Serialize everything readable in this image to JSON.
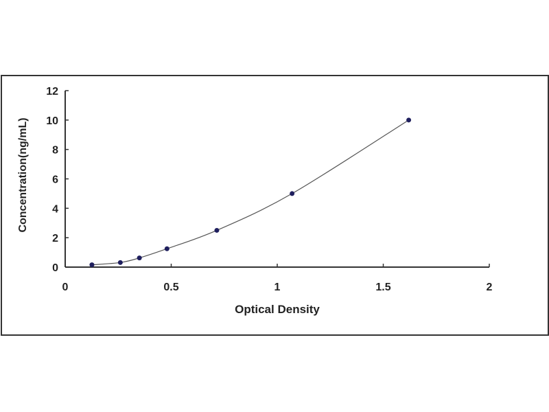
{
  "chart_data": {
    "type": "scatter",
    "title": "",
    "xlabel": "Optical Density",
    "ylabel": "Concentration(ng/mL)",
    "xlim": [
      0,
      2
    ],
    "ylim": [
      0,
      12
    ],
    "xticks": [
      0,
      0.5,
      1,
      1.5,
      2
    ],
    "xtick_labels": [
      "0",
      "0.5",
      "1",
      "1.5",
      "2"
    ],
    "yticks": [
      0,
      2,
      4,
      6,
      8,
      10,
      12
    ],
    "ytick_labels": [
      "0",
      "2",
      "4",
      "6",
      "8",
      "10",
      "12"
    ],
    "grid": false,
    "trendline": "smooth curve",
    "series": [
      {
        "x": [
          0.126,
          0.26,
          0.35,
          0.48,
          0.715,
          1.07,
          1.62
        ],
        "y": [
          0.156,
          0.312,
          0.625,
          1.25,
          2.5,
          5,
          10
        ],
        "color": "#1f1f5e"
      }
    ]
  }
}
